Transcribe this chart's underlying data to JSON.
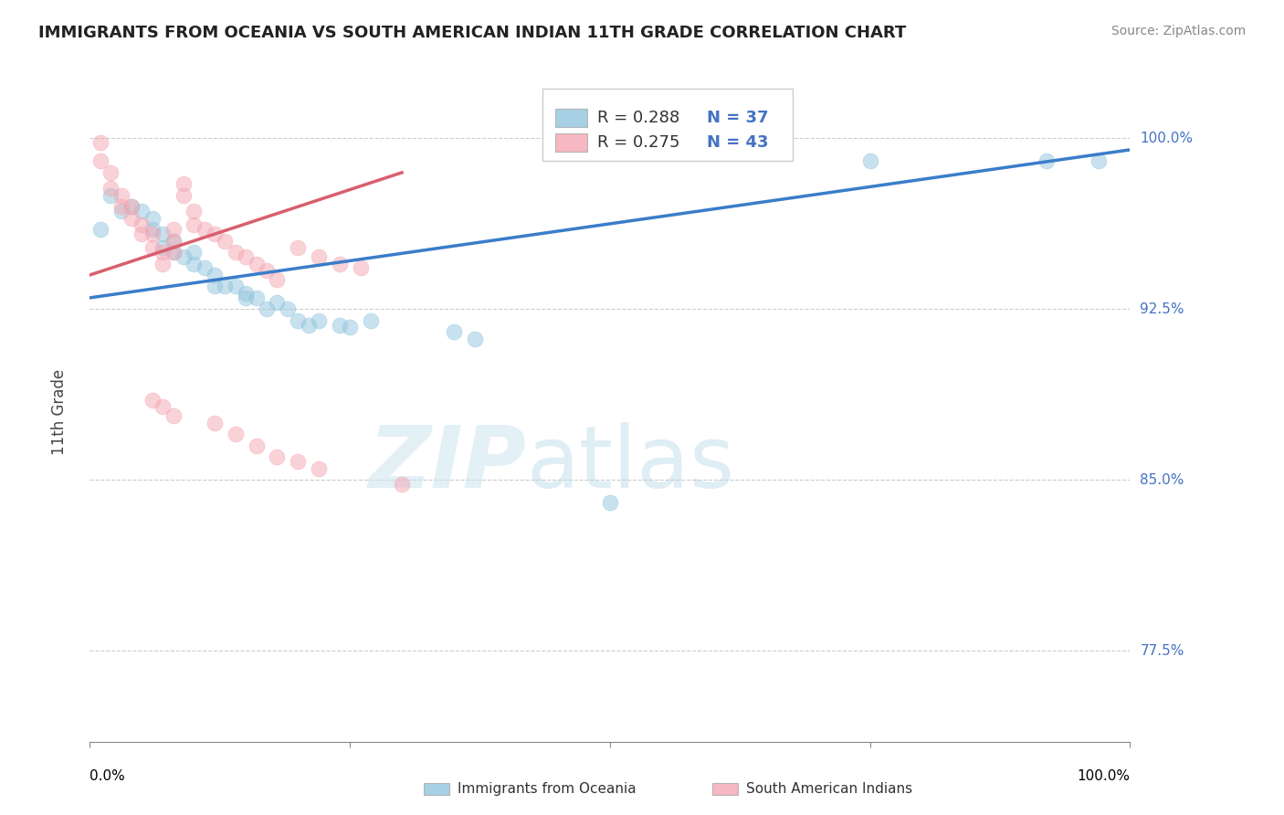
{
  "title": "IMMIGRANTS FROM OCEANIA VS SOUTH AMERICAN INDIAN 11TH GRADE CORRELATION CHART",
  "source": "Source: ZipAtlas.com",
  "ylabel_label": "11th Grade",
  "watermark_zip": "ZIP",
  "watermark_atlas": "atlas",
  "xlim": [
    0.0,
    1.0
  ],
  "ylim": [
    0.735,
    1.025
  ],
  "y_ticks": [
    0.775,
    0.85,
    0.925,
    1.0
  ],
  "y_tick_labels": [
    "77.5%",
    "85.0%",
    "92.5%",
    "100.0%"
  ],
  "legend_r_blue": "R = 0.288",
  "legend_n_blue": "N = 37",
  "legend_r_pink": "R = 0.275",
  "legend_n_pink": "N = 43",
  "blue_color": "#92c5de",
  "pink_color": "#f4a6b2",
  "line_blue_color": "#3a7dc9",
  "line_pink_color": "#d95f6e",
  "blue_x": [
    0.01,
    0.02,
    0.03,
    0.04,
    0.05,
    0.06,
    0.06,
    0.07,
    0.07,
    0.08,
    0.08,
    0.09,
    0.1,
    0.1,
    0.11,
    0.12,
    0.12,
    0.13,
    0.14,
    0.15,
    0.15,
    0.16,
    0.17,
    0.18,
    0.19,
    0.2,
    0.21,
    0.22,
    0.24,
    0.25,
    0.27,
    0.35,
    0.37,
    0.5,
    0.75,
    0.92,
    0.97
  ],
  "blue_y": [
    0.96,
    0.975,
    0.968,
    0.97,
    0.968,
    0.965,
    0.96,
    0.958,
    0.952,
    0.955,
    0.95,
    0.948,
    0.95,
    0.945,
    0.943,
    0.94,
    0.935,
    0.935,
    0.935,
    0.932,
    0.93,
    0.93,
    0.925,
    0.928,
    0.925,
    0.92,
    0.918,
    0.92,
    0.918,
    0.917,
    0.92,
    0.915,
    0.912,
    0.84,
    0.99,
    0.99,
    0.99
  ],
  "pink_x": [
    0.01,
    0.01,
    0.02,
    0.02,
    0.03,
    0.03,
    0.04,
    0.04,
    0.05,
    0.05,
    0.06,
    0.06,
    0.07,
    0.07,
    0.08,
    0.08,
    0.08,
    0.09,
    0.09,
    0.1,
    0.1,
    0.11,
    0.12,
    0.13,
    0.14,
    0.15,
    0.16,
    0.17,
    0.18,
    0.2,
    0.22,
    0.24,
    0.26,
    0.06,
    0.07,
    0.08,
    0.12,
    0.14,
    0.16,
    0.18,
    0.2,
    0.22,
    0.3
  ],
  "pink_y": [
    0.998,
    0.99,
    0.985,
    0.978,
    0.975,
    0.97,
    0.97,
    0.965,
    0.962,
    0.958,
    0.958,
    0.952,
    0.95,
    0.945,
    0.96,
    0.955,
    0.95,
    0.98,
    0.975,
    0.968,
    0.962,
    0.96,
    0.958,
    0.955,
    0.95,
    0.948,
    0.945,
    0.942,
    0.938,
    0.952,
    0.948,
    0.945,
    0.943,
    0.885,
    0.882,
    0.878,
    0.875,
    0.87,
    0.865,
    0.86,
    0.858,
    0.855,
    0.848
  ],
  "blue_trend_x0": 0.0,
  "blue_trend_x1": 1.0,
  "blue_trend_y0": 0.93,
  "blue_trend_y1": 0.995,
  "pink_trend_x0": 0.0,
  "pink_trend_x1": 0.3,
  "pink_trend_y0": 0.94,
  "pink_trend_y1": 0.985
}
